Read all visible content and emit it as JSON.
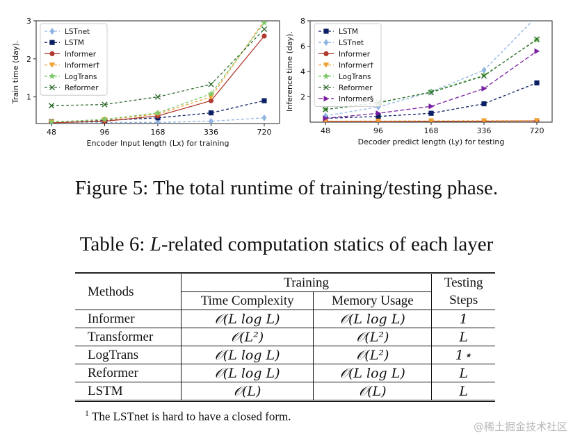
{
  "figure": {
    "caption": "Figure 5: The total runtime of training/testing phase."
  },
  "chart_data": [
    {
      "type": "line",
      "ylabel": "Train time (day).",
      "xlabel": "Encoder Input length (Lx) for training",
      "categories": [
        "48",
        "96",
        "168",
        "336",
        "720"
      ],
      "yticks": [
        "1",
        "2",
        "3"
      ],
      "ylim": [
        0.3,
        3
      ],
      "legend_position": "top-left",
      "series": [
        {
          "name": "LSTnet",
          "color": "#8fb4e3",
          "marker": "diamond",
          "dash": "4 3",
          "values": [
            0.33,
            0.33,
            0.33,
            0.36,
            0.45
          ]
        },
        {
          "name": "LSTM",
          "color": "#0b1f64",
          "marker": "square",
          "dash": "4 3",
          "values": [
            0.35,
            0.38,
            0.45,
            0.58,
            0.9
          ]
        },
        {
          "name": "Informer",
          "color": "#b03a2e",
          "marker": "circle",
          "dash": "",
          "values": [
            0.32,
            0.36,
            0.5,
            0.9,
            2.6
          ]
        },
        {
          "name": "Informer†",
          "color": "#f0a030",
          "marker": "triangle-down",
          "dash": "4 3",
          "values": [
            0.34,
            0.4,
            0.55,
            1.0,
            3.0
          ]
        },
        {
          "name": "LogTrans",
          "color": "#7cc86a",
          "marker": "star",
          "dash": "4 3",
          "values": [
            0.34,
            0.41,
            0.58,
            1.08,
            2.95
          ]
        },
        {
          "name": "Reformer",
          "color": "#2e6b2e",
          "marker": "x",
          "dash": "4 3",
          "values": [
            0.77,
            0.8,
            1.0,
            1.33,
            2.78
          ]
        }
      ]
    },
    {
      "type": "line",
      "ylabel": "Inference time (day).",
      "xlabel": "Decoder predict length (Ly) for testing",
      "categories": [
        "48",
        "96",
        "168",
        "336",
        "720"
      ],
      "yticks": [
        "2",
        "4",
        "6",
        "8"
      ],
      "ylim": [
        0,
        8
      ],
      "legend_position": "top-left",
      "series": [
        {
          "name": "LSTM",
          "color": "#0b1f64",
          "marker": "square",
          "dash": "4 3",
          "values": [
            0.3,
            0.45,
            0.7,
            1.45,
            3.1
          ]
        },
        {
          "name": "LSTnet",
          "color": "#8fb4e3",
          "marker": "diamond",
          "dash": "4 3",
          "values": [
            0.5,
            1.2,
            2.4,
            4.1,
            8.6
          ]
        },
        {
          "name": "Informer",
          "color": "#b03a2e",
          "marker": "circle",
          "dash": "",
          "values": [
            0.05,
            0.05,
            0.06,
            0.07,
            0.1
          ]
        },
        {
          "name": "Informer†",
          "color": "#f0a030",
          "marker": "triangle-down",
          "dash": "4 3",
          "values": [
            0.08,
            0.09,
            0.1,
            0.11,
            0.12
          ]
        },
        {
          "name": "LogTrans",
          "color": "#7cc86a",
          "marker": "star",
          "dash": "4 3",
          "values": [
            1.0,
            1.5,
            2.4,
            3.7,
            6.5
          ]
        },
        {
          "name": "Reformer",
          "color": "#2e6b2e",
          "marker": "x",
          "dash": "4 3",
          "values": [
            1.0,
            1.55,
            2.35,
            3.65,
            6.55
          ]
        },
        {
          "name": "Informer§",
          "color": "#7a1fa2",
          "marker": "triangle-right",
          "dash": "6 3",
          "values": [
            0.3,
            0.7,
            1.25,
            2.65,
            5.6
          ]
        }
      ]
    }
  ],
  "table": {
    "caption": "Table 6: L-related computation statics of each layer",
    "header": {
      "methods": "Methods",
      "training": "Training",
      "testing": "Testing",
      "time_complexity": "Time Complexity",
      "memory_usage": "Memory Usage",
      "steps": "Steps"
    },
    "rows": [
      {
        "method": "Informer",
        "time": "𝒪(L log L)",
        "memory": "𝒪(L log L)",
        "steps": "1"
      },
      {
        "method": "Transformer",
        "time": "𝒪(L²)",
        "memory": "𝒪(L²)",
        "steps": "L"
      },
      {
        "method": "LogTrans",
        "time": "𝒪(L log L)",
        "memory": "𝒪(L²)",
        "steps": "1⋆"
      },
      {
        "method": "Reformer",
        "time": "𝒪(L log L)",
        "memory": "𝒪(L log L)",
        "steps": "L"
      },
      {
        "method": "LSTM",
        "time": "𝒪(L)",
        "memory": "𝒪(L)",
        "steps": "L"
      }
    ],
    "footnote_mark": "1",
    "footnote": "The LSTnet is hard to have a closed form."
  },
  "watermark": "@稀土掘金技术社区"
}
